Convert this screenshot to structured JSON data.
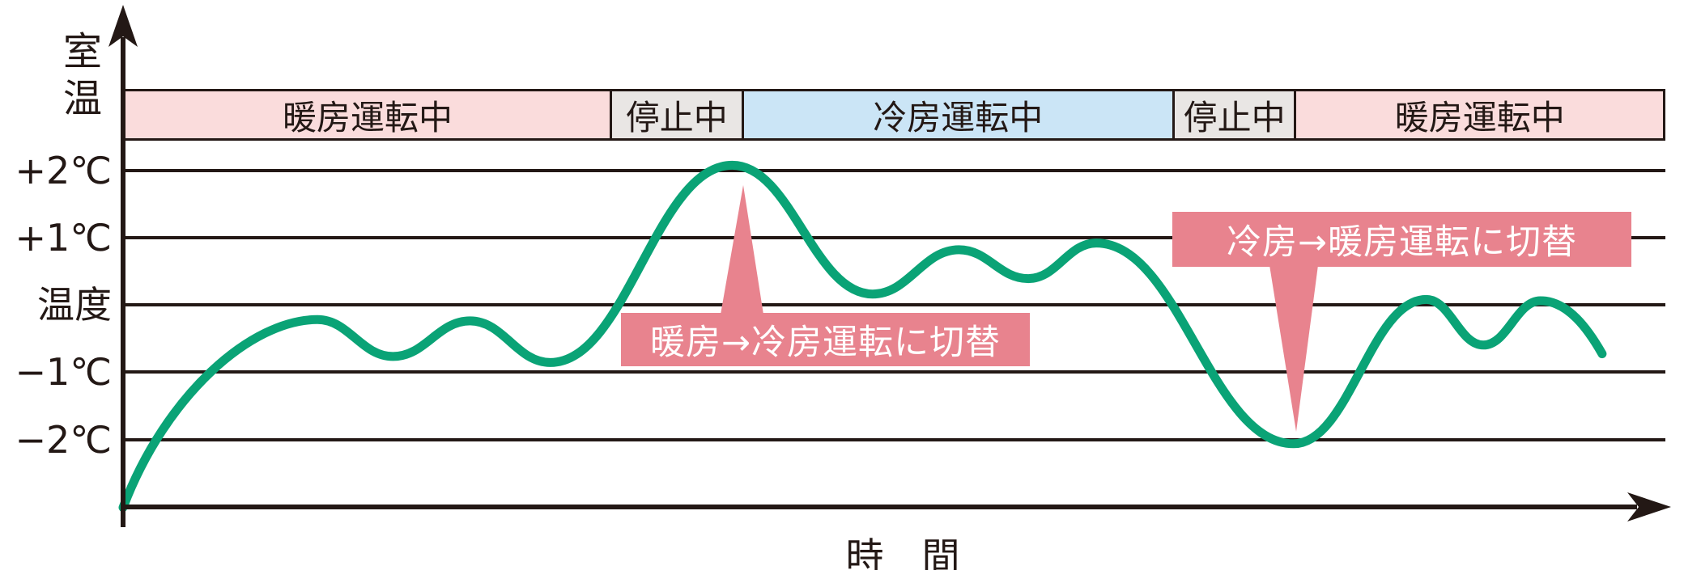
{
  "y_axis": {
    "title": "室温",
    "ticks": [
      "+2℃",
      "+1℃",
      "温度",
      "−1℃",
      "−2℃"
    ]
  },
  "x_axis": {
    "title": "時　間"
  },
  "banner": {
    "segments": [
      {
        "label": "暖房運転中",
        "mode": "heating"
      },
      {
        "label": "停止中",
        "mode": "stopped"
      },
      {
        "label": "冷房運転中",
        "mode": "cooling"
      },
      {
        "label": "停止中",
        "mode": "stopped"
      },
      {
        "label": "暖房運転中",
        "mode": "heating"
      }
    ]
  },
  "callouts": [
    {
      "label": "暖房→冷房運転に切替",
      "points_to": "+2℃ peak at heating→cooling switch"
    },
    {
      "label": "冷房→暖房運転に切替",
      "points_to": "−2℃ trough at cooling→heating switch"
    }
  ],
  "colors": {
    "curve_green": "#0aa376",
    "line_black": "#231815",
    "heating_band_pink": "#fadcdc",
    "cooling_band_blue": "#cbe5f6",
    "stopped_band_gray": "#e9e6e4",
    "callout_rose": "#e8838e",
    "callout_text": "#ffffff"
  },
  "chart_data": {
    "type": "line",
    "title": "",
    "xlabel": "時間",
    "ylabel": "室温",
    "y_tick_labels": [
      "+2℃",
      "+1℃",
      "温度",
      "−1℃",
      "−2℃"
    ],
    "y_tick_values": [
      2,
      1,
      0,
      -1,
      -2
    ],
    "ylim": [
      -3,
      2.6
    ],
    "xlim": [
      0,
      100
    ],
    "x_units": "relative time (no numeric ticks shown)",
    "grid": "horizontal gridlines at +2, +1, 0(温度), −1, −2 ℃; x-axis baseline at −3",
    "legend_position": "none",
    "series": [
      {
        "name": "室温 (room temperature)",
        "color": "#0aa376",
        "points": [
          [
            0,
            -3.02
          ],
          [
            12.6,
            -0.22
          ],
          [
            17.5,
            -0.77
          ],
          [
            22.5,
            -0.24
          ],
          [
            27.7,
            -0.86
          ],
          [
            39.5,
            2.08
          ],
          [
            48.6,
            0.16
          ],
          [
            54.2,
            0.82
          ],
          [
            58.7,
            0.39
          ],
          [
            63.1,
            0.92
          ],
          [
            75.9,
            -2.07
          ],
          [
            84.5,
            0.08
          ],
          [
            88.2,
            -0.6
          ],
          [
            91.9,
            0.06
          ],
          [
            95.9,
            -0.73
          ]
        ]
      }
    ],
    "operation_bands": [
      {
        "label": "暖房運転中",
        "x_range": [
          0,
          31.7
        ],
        "color": "#fadcdc"
      },
      {
        "label": "停止中",
        "x_range": [
          31.7,
          40.2
        ],
        "color": "#e9e6e4"
      },
      {
        "label": "冷房運転中",
        "x_range": [
          40.2,
          68.2
        ],
        "color": "#cbe5f6"
      },
      {
        "label": "停止中",
        "x_range": [
          68.2,
          76.2
        ],
        "color": "#e9e6e4"
      },
      {
        "label": "暖房運転中",
        "x_range": [
          76.2,
          100
        ],
        "color": "#fadcdc"
      }
    ],
    "annotations": [
      {
        "label": "暖房→冷房運転に切替",
        "arrow_points_to_x": 40.2,
        "arrow_points_to_y": 2
      },
      {
        "label": "冷房→暖房運転に切替",
        "arrow_points_to_x": 76.2,
        "arrow_points_to_y": -2
      }
    ]
  }
}
